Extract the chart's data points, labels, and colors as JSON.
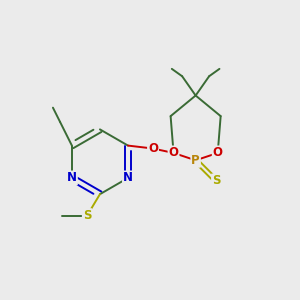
{
  "background_color": "#ebebeb",
  "bond_color": "#3a6b35",
  "atom_colors": {
    "N": "#0000cc",
    "O": "#cc0000",
    "P": "#b8860b",
    "S": "#aaaa00",
    "C": "#3a6b35"
  },
  "figsize": [
    3.0,
    3.0
  ],
  "dpi": 100
}
